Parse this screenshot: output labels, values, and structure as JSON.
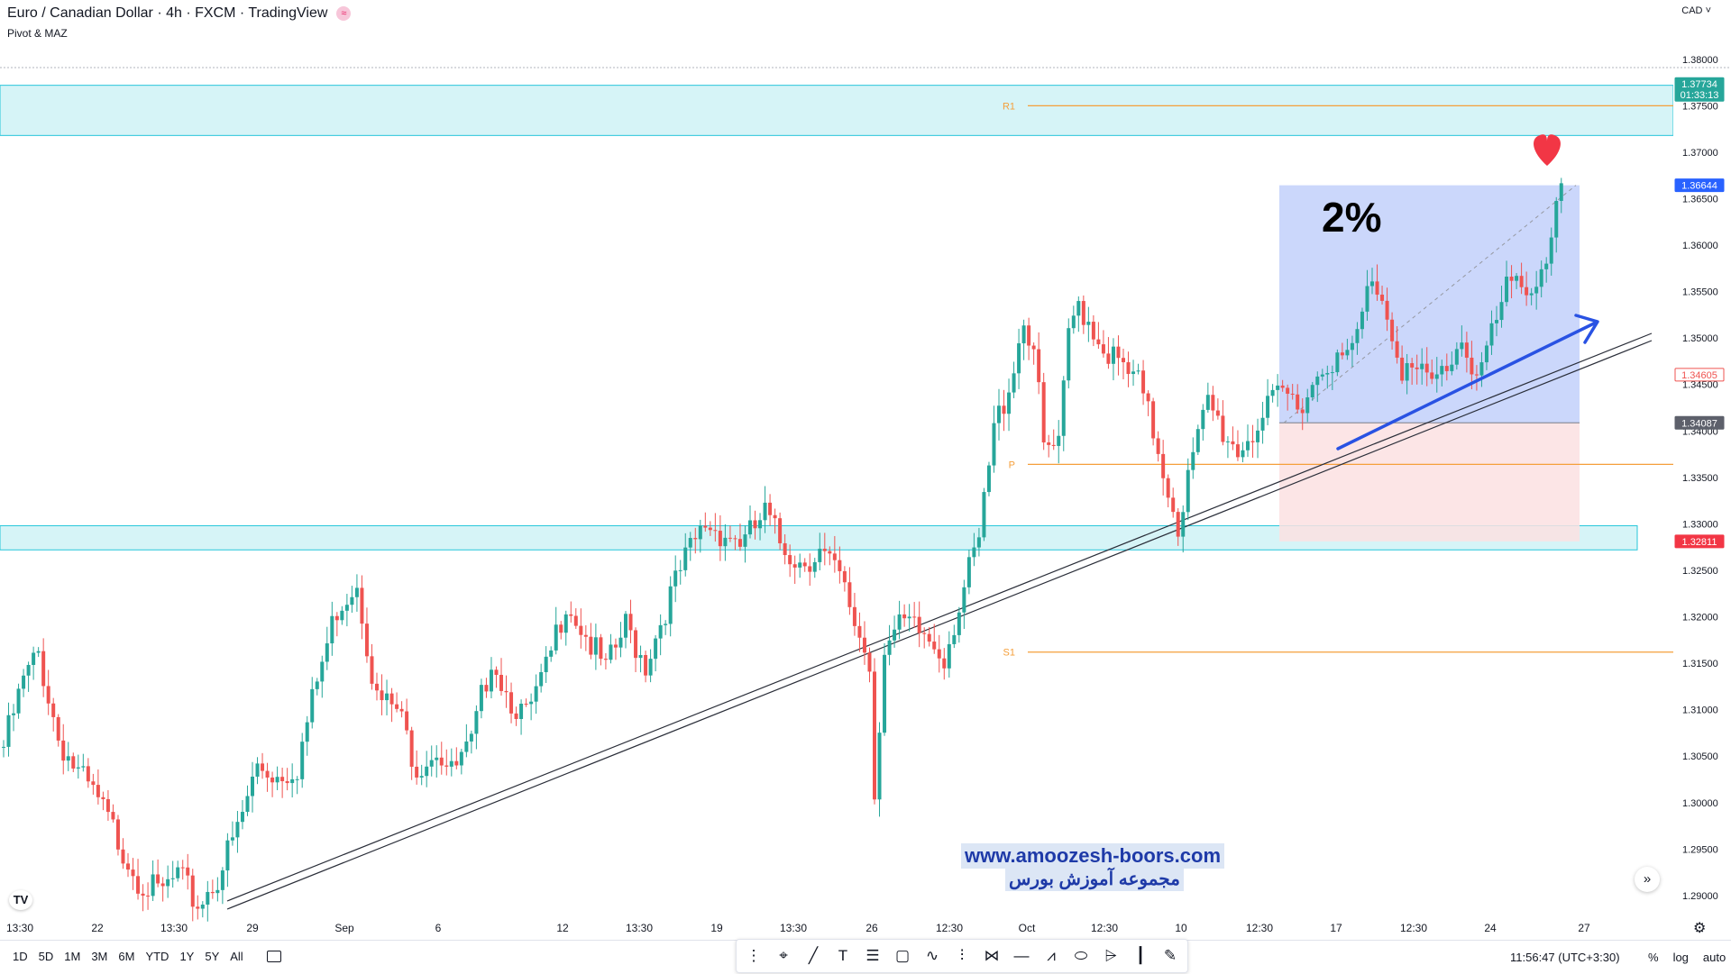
{
  "header": {
    "symbol_title": "Euro / Canadian Dollar · 4h · FXCM · TradingView",
    "indicator": "Pivot & MAZ"
  },
  "currency_selector": "CAD",
  "price_axis": {
    "ticks": [
      "1.38000",
      "1.37500",
      "1.37000",
      "1.36500",
      "1.36000",
      "1.35500",
      "1.35000",
      "1.34500",
      "1.34000",
      "1.33500",
      "1.33000",
      "1.32500",
      "1.32000",
      "1.31500",
      "1.31000",
      "1.30500",
      "1.30000",
      "1.29500",
      "1.29000"
    ],
    "labels": [
      {
        "price": "1.37734",
        "countdown": "01:33:13",
        "color": "#26a69a",
        "value": 1.37734
      },
      {
        "price": "1.36644",
        "color": "#2962ff",
        "value": 1.36644
      },
      {
        "price": "1.34605",
        "color": "#ef5350",
        "value": 1.34605,
        "outline": true
      },
      {
        "price": "1.34087",
        "color": "#5d606b",
        "value": 1.34087
      },
      {
        "price": "1.32811",
        "color": "#f23645",
        "value": 1.32811
      }
    ]
  },
  "time_axis": [
    "13:30",
    "22",
    "13:30",
    "29",
    "Sep",
    "6",
    "12",
    "13:30",
    "19",
    "13:30",
    "26",
    "12:30",
    "Oct",
    "12:30",
    "10",
    "12:30",
    "17",
    "12:30",
    "24",
    "27"
  ],
  "pivots": [
    {
      "label": "R1",
      "value": 1.375
    },
    {
      "label": "P",
      "value": 1.3364
    },
    {
      "label": "S1",
      "value": 1.3162
    }
  ],
  "zones": [
    {
      "from": 1.3772,
      "to": 1.3718
    },
    {
      "from": 1.3298,
      "to": 1.3272
    }
  ],
  "position": {
    "entry": 1.34087,
    "target": 1.36644,
    "stop": 1.32811,
    "percent": "2%"
  },
  "chart_data": {
    "type": "candlestick",
    "ylim": [
      1.2865,
      1.3825
    ],
    "x_anchors": [
      {
        "label": "22",
        "bar": 18
      },
      {
        "label": "29",
        "bar": 50
      },
      {
        "label": "Sep",
        "bar": 68
      },
      {
        "label": "6",
        "bar": 87
      },
      {
        "label": "12",
        "bar": 112
      },
      {
        "label": "19",
        "bar": 143
      },
      {
        "label": "26",
        "bar": 174
      },
      {
        "label": "Oct",
        "bar": 205
      },
      {
        "label": "10",
        "bar": 236
      },
      {
        "label": "17",
        "bar": 267
      },
      {
        "label": "24",
        "bar": 298
      },
      {
        "label": "27",
        "bar": 316
      }
    ],
    "series_anchors": [
      [
        0,
        1.306
      ],
      [
        4,
        1.313
      ],
      [
        7,
        1.316
      ],
      [
        11,
        1.307
      ],
      [
        15,
        1.303
      ],
      [
        19,
        1.3
      ],
      [
        23,
        1.296
      ],
      [
        27,
        1.292
      ],
      [
        31,
        1.29
      ],
      [
        35,
        1.292
      ],
      [
        39,
        1.289
      ],
      [
        43,
        1.292
      ],
      [
        47,
        1.297
      ],
      [
        51,
        1.304
      ],
      [
        55,
        1.303
      ],
      [
        59,
        1.304
      ],
      [
        63,
        1.313
      ],
      [
        67,
        1.321
      ],
      [
        71,
        1.324
      ],
      [
        75,
        1.311
      ],
      [
        79,
        1.31
      ],
      [
        83,
        1.304
      ],
      [
        87,
        1.306
      ],
      [
        90,
        1.303
      ],
      [
        94,
        1.306
      ],
      [
        98,
        1.316
      ],
      [
        101,
        1.312
      ],
      [
        105,
        1.309
      ],
      [
        109,
        1.314
      ],
      [
        113,
        1.322
      ],
      [
        117,
        1.318
      ],
      [
        121,
        1.314
      ],
      [
        125,
        1.319
      ],
      [
        129,
        1.315
      ],
      [
        133,
        1.321
      ],
      [
        137,
        1.326
      ],
      [
        141,
        1.33
      ],
      [
        145,
        1.329
      ],
      [
        149,
        1.328
      ],
      [
        153,
        1.331
      ],
      [
        156,
        1.328
      ],
      [
        160,
        1.326
      ],
      [
        164,
        1.327
      ],
      [
        168,
        1.324
      ],
      [
        172,
        1.318
      ],
      [
        174,
        1.315
      ],
      [
        175,
        1.301
      ],
      [
        177,
        1.317
      ],
      [
        181,
        1.319
      ],
      [
        185,
        1.318
      ],
      [
        189,
        1.316
      ],
      [
        193,
        1.323
      ],
      [
        196,
        1.328
      ],
      [
        199,
        1.34
      ],
      [
        202,
        1.345
      ],
      [
        205,
        1.352
      ],
      [
        207,
        1.349
      ],
      [
        209,
        1.338
      ],
      [
        212,
        1.338
      ],
      [
        214,
        1.35
      ],
      [
        216,
        1.354
      ],
      [
        220,
        1.35
      ],
      [
        224,
        1.347
      ],
      [
        228,
        1.345
      ],
      [
        231,
        1.34
      ],
      [
        234,
        1.334
      ],
      [
        236,
        1.33
      ],
      [
        239,
        1.337
      ],
      [
        242,
        1.343
      ],
      [
        245,
        1.34
      ],
      [
        248,
        1.338
      ],
      [
        251,
        1.34
      ],
      [
        254,
        1.342
      ],
      [
        257,
        1.344
      ],
      [
        260,
        1.343
      ],
      [
        263,
        1.345
      ],
      [
        266,
        1.348
      ],
      [
        269,
        1.347
      ],
      [
        272,
        1.35
      ],
      [
        275,
        1.357
      ],
      [
        278,
        1.353
      ],
      [
        281,
        1.347
      ],
      [
        284,
        1.346
      ],
      [
        287,
        1.345
      ],
      [
        290,
        1.347
      ],
      [
        293,
        1.35
      ],
      [
        296,
        1.346
      ],
      [
        299,
        1.35
      ],
      [
        302,
        1.355
      ],
      [
        305,
        1.356
      ],
      [
        308,
        1.356
      ],
      [
        310,
        1.359
      ],
      [
        312,
        1.364
      ],
      [
        313,
        1.366
      ]
    ]
  },
  "watermark": {
    "url": "www.amoozesh-boors.com",
    "caption": "مجموعه آموزش بورس"
  },
  "bottom_bar": {
    "periods": [
      "1D",
      "5D",
      "1M",
      "3M",
      "6M",
      "YTD",
      "1Y",
      "5Y",
      "All"
    ],
    "clock": "11:56:47 (UTC+3:30)",
    "options": [
      "%",
      "log",
      "auto"
    ]
  },
  "colors": {
    "up": "#26a69a",
    "down": "#ef5350",
    "zone": "#d6f4f7",
    "zone_border": "#26c6da",
    "pivot": "#f59f3a",
    "target_fill": "#c5d3fb",
    "stop_fill": "#fbe0e2",
    "arrow": "#2952e3"
  },
  "icons": [
    "cursor-icon",
    "pencil-icon",
    "text-icon",
    "fib-icon",
    "rectangle-icon",
    "brush-icon",
    "pattern-icon",
    "measure-icon",
    "line-icon",
    "path-icon",
    "ellipse-icon",
    "pitchfork-icon",
    "marker-icon",
    "draw-icon"
  ]
}
